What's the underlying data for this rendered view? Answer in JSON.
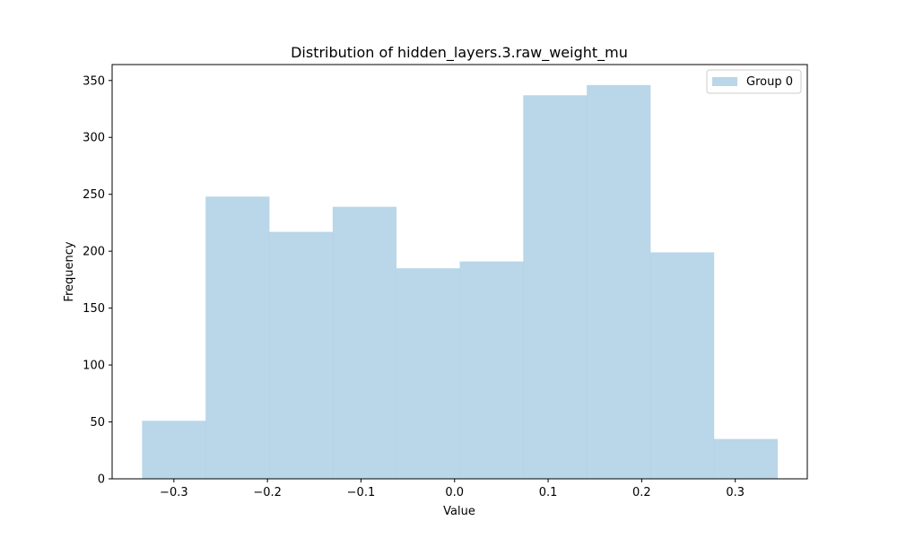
{
  "chart_data": {
    "type": "bar",
    "title": "Distribution of hidden_layers.3.raw_weight_mu",
    "xlabel": "Value",
    "ylabel": "Frequency",
    "xlim": [
      -0.366,
      0.377
    ],
    "ylim": [
      0,
      364
    ],
    "xticks": [
      -0.3,
      -0.2,
      -0.1,
      0.0,
      0.1,
      0.2,
      0.3
    ],
    "xtick_labels": [
      "−0.3",
      "−0.2",
      "−0.1",
      "0.0",
      "0.1",
      "0.2",
      "0.3"
    ],
    "yticks": [
      0,
      50,
      100,
      150,
      200,
      250,
      300,
      350
    ],
    "ytick_labels": [
      "0",
      "50",
      "100",
      "150",
      "200",
      "250",
      "300",
      "350"
    ],
    "bin_edges": [
      -0.334,
      -0.2661,
      -0.1982,
      -0.1303,
      -0.0624,
      0.0055,
      0.0734,
      0.1413,
      0.2092,
      0.2771,
      0.345
    ],
    "series": [
      {
        "name": "Group 0",
        "values": [
          51,
          248,
          217,
          239,
          185,
          191,
          337,
          346,
          199,
          35
        ]
      }
    ],
    "color": "#a9cce3",
    "opacity": 0.8,
    "grid": false,
    "legend": "top-right"
  }
}
